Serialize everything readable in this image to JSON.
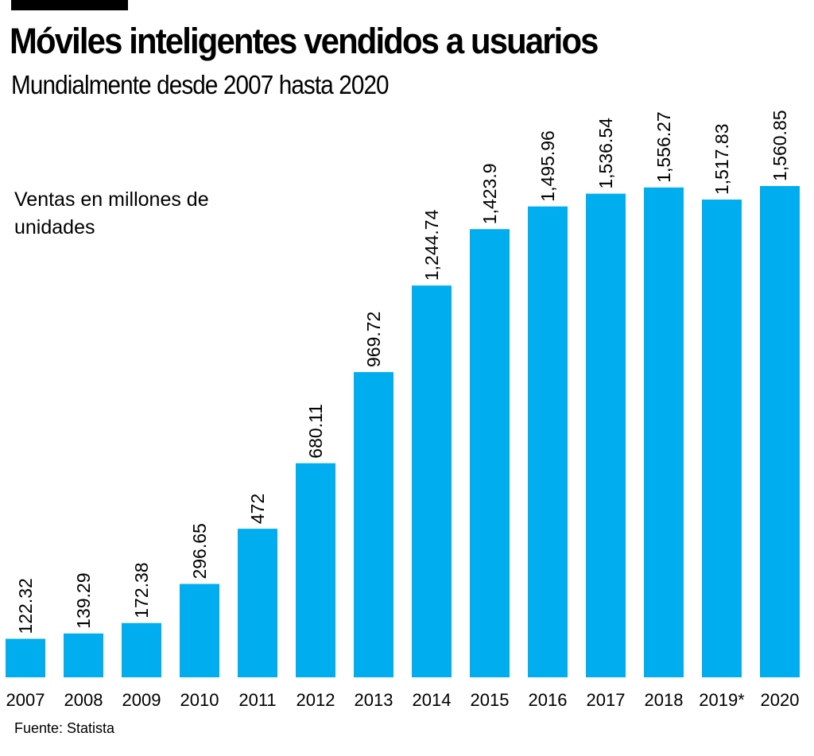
{
  "title": "Móviles inteligentes vendidos a usuarios",
  "subtitle": "Mundialmente desde 2007 hasta 2020",
  "source": "Fuente:  Statista",
  "colors": {
    "bar": "#00AEEF",
    "text": "#000000",
    "accent_bar": "#000000"
  },
  "chart_data": {
    "type": "bar",
    "title": "Móviles inteligentes vendidos a usuarios",
    "subtitle": "Mundialmente desde 2007 hasta 2020",
    "ylabel": "Ventas en millones de unidades",
    "xlabel": "",
    "grid": false,
    "categories": [
      "2007",
      "2008",
      "2009",
      "2010",
      "2011",
      "2012",
      "2013",
      "2014",
      "2015",
      "2016",
      "2017",
      "2018",
      "2019*",
      "2020"
    ],
    "values": [
      122.32,
      139.29,
      172.38,
      296.65,
      472,
      680.11,
      969.72,
      1244.74,
      1423.9,
      1495.96,
      1536.54,
      1556.27,
      1517.83,
      1560.85
    ],
    "value_labels": [
      "122.32",
      "139.29",
      "172.38",
      "296.65",
      "472",
      "680.11",
      "969.72",
      "1,244.74",
      "1,423.9",
      "1,495.96",
      "1,536.54",
      "1,556.27",
      "1,517.83",
      "1,560.85"
    ],
    "ylim": [
      0,
      1560.85
    ]
  }
}
